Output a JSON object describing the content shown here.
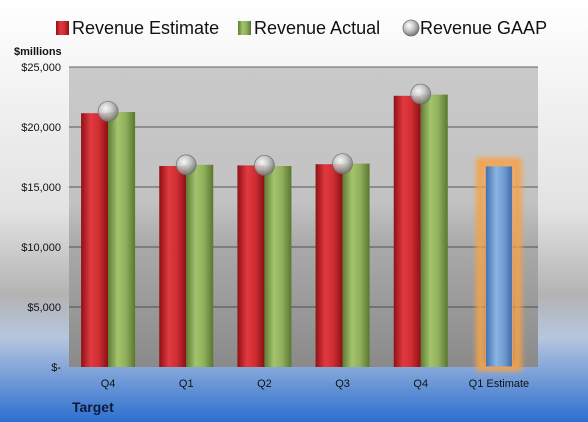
{
  "chart_data": {
    "type": "bar",
    "company": "Target",
    "ylabel": "$millions",
    "categories": [
      "Q4",
      "Q1",
      "Q2",
      "Q3",
      "Q4",
      "Q1 Estimate"
    ],
    "ylim": [
      0,
      25000
    ],
    "yticks": [
      0,
      5000,
      10000,
      15000,
      20000,
      25000
    ],
    "ytick_labels": [
      "$-",
      "$5,000",
      "$10,000",
      "$15,000",
      "$20,000",
      "$25,000"
    ],
    "grid": true,
    "legend_position": "top",
    "series": [
      {
        "name": "Revenue Estimate",
        "kind": "bar",
        "color": "#c0282d",
        "values": [
          21150,
          16750,
          16800,
          16900,
          22600,
          null
        ]
      },
      {
        "name": "Revenue Actual",
        "kind": "bar",
        "color": "#8bab57",
        "values": [
          21250,
          16850,
          16750,
          16950,
          22700,
          null
        ]
      },
      {
        "name": "Revenue GAAP",
        "kind": "marker",
        "color": "#b8b8b8",
        "values": [
          21300,
          16850,
          16800,
          16950,
          22750,
          null
        ]
      },
      {
        "name": "",
        "kind": "bar-highlighted",
        "color": "#6d9bd1",
        "values": [
          null,
          null,
          null,
          null,
          null,
          16750
        ]
      }
    ]
  }
}
